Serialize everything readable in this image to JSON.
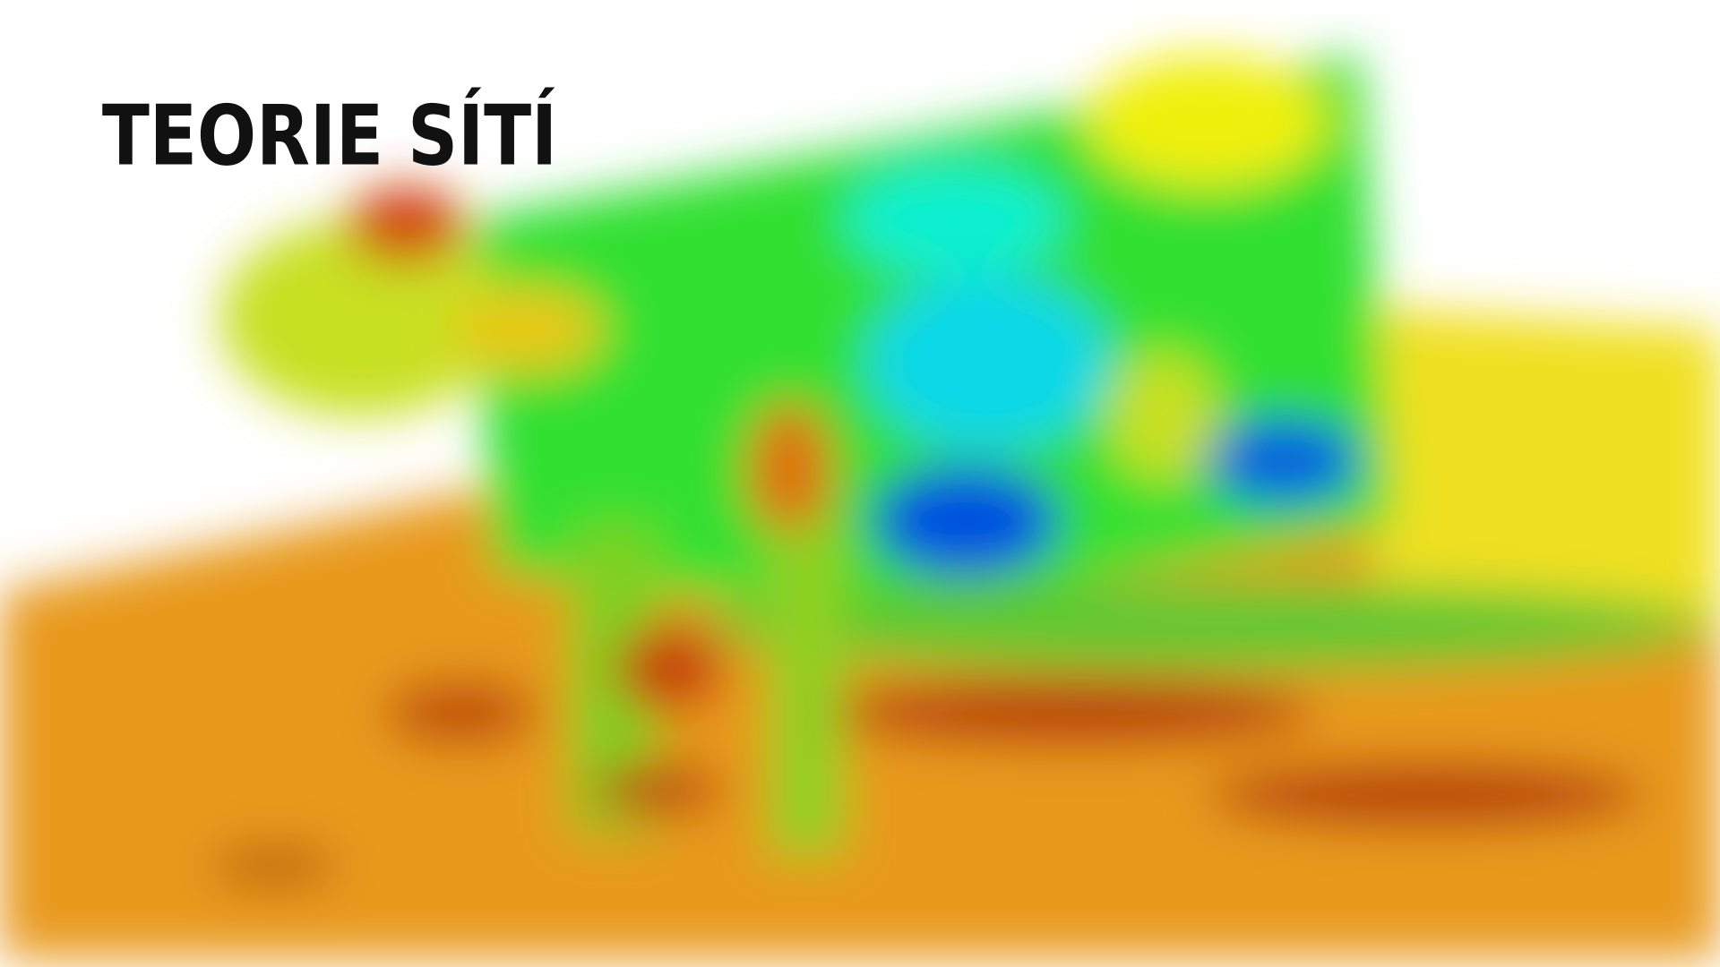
{
  "title": "TEORIE SÍTÍ"
}
